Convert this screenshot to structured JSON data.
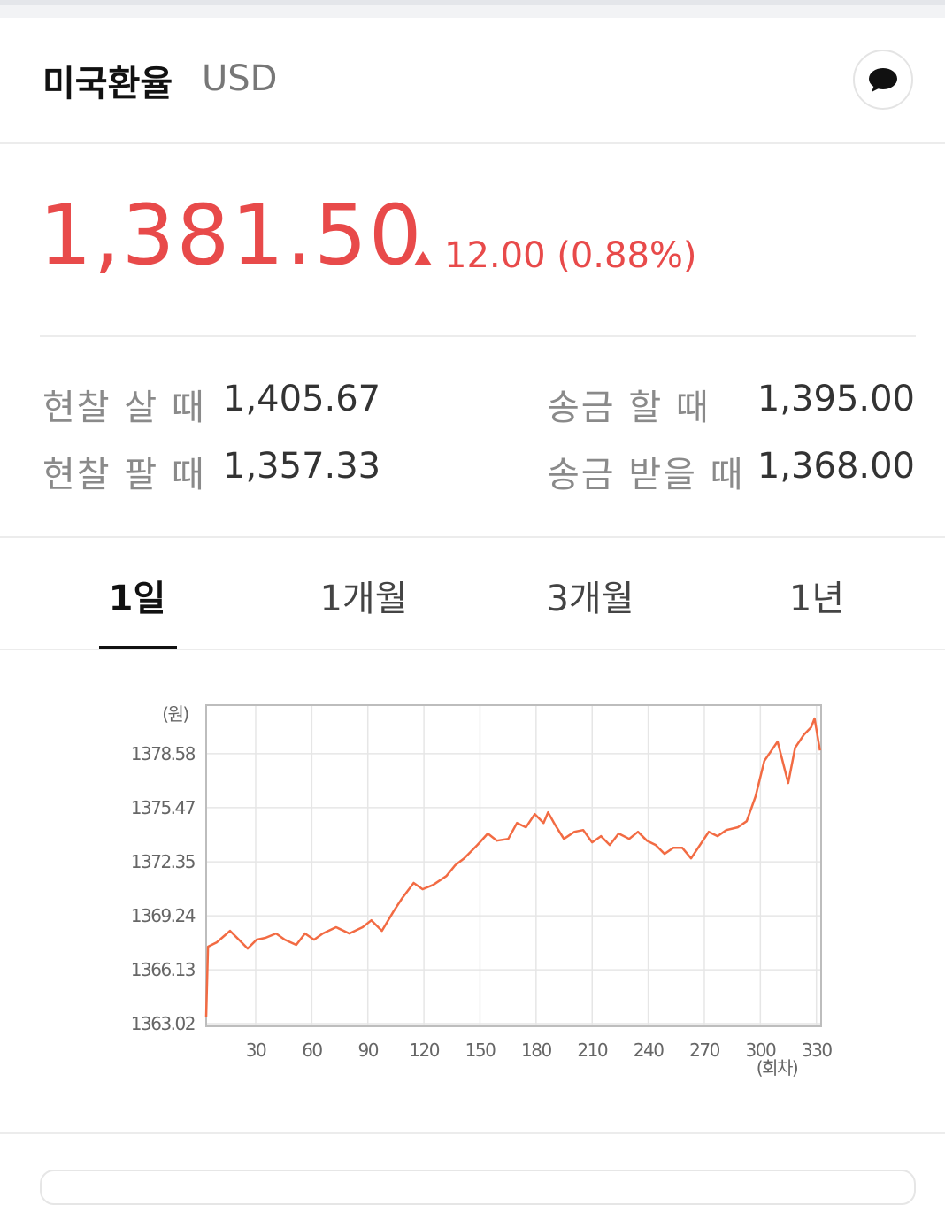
{
  "header": {
    "title": "미국환율",
    "code": "USD"
  },
  "quote": {
    "price": "1,381.50",
    "change": "12.00 (0.88%)"
  },
  "rates": [
    {
      "label": "현찰 살 때",
      "value": "1,405.67"
    },
    {
      "label": "송금 할 때",
      "value": "1,395.00"
    },
    {
      "label": "현찰 팔 때",
      "value": "1,357.33"
    },
    {
      "label": "송금 받을 때",
      "value": "1,368.00"
    }
  ],
  "tabs": [
    "1일",
    "1개월",
    "3개월",
    "1년"
  ],
  "chart_data": {
    "type": "line",
    "y_unit": "(원)",
    "x_unit": "(회차)",
    "x": [
      3.5,
      4.5,
      9.2,
      16.3,
      21.0,
      25.7,
      30.5,
      35.2,
      40.9,
      45.6,
      51.7,
      56.4,
      61.2,
      65.9,
      73.0,
      80.1,
      87.2,
      91.9,
      97.5,
      103.7,
      108.4,
      114.5,
      119.3,
      124.9,
      132.0,
      136.7,
      141.5,
      148.6,
      154.2,
      159.0,
      165.1,
      169.8,
      174.6,
      179.3,
      184.0,
      186.4,
      190.1,
      194.9,
      200.5,
      205.2,
      210.0,
      214.7,
      219.4,
      224.2,
      229.8,
      234.5,
      239.3,
      244.0,
      248.7,
      253.5,
      258.2,
      262.9,
      267.7,
      272.4,
      277.1,
      281.8,
      287.9,
      292.7,
      297.4,
      302.1,
      309.2,
      314.9,
      318.6,
      323.4,
      327.1,
      329.0,
      331.9
    ],
    "series": [
      {
        "color": "#f26b43",
        "values": [
          1363.38,
          1367.46,
          1367.71,
          1368.37,
          1367.86,
          1367.35,
          1367.86,
          1367.97,
          1368.22,
          1367.86,
          1367.56,
          1368.22,
          1367.86,
          1368.22,
          1368.58,
          1368.22,
          1368.58,
          1368.98,
          1368.37,
          1369.49,
          1370.26,
          1371.13,
          1370.77,
          1371.02,
          1371.53,
          1372.15,
          1372.55,
          1373.32,
          1373.98,
          1373.57,
          1373.67,
          1374.59,
          1374.34,
          1375.1,
          1374.59,
          1375.2,
          1374.49,
          1373.67,
          1374.08,
          1374.18,
          1373.47,
          1373.83,
          1373.32,
          1373.98,
          1373.67,
          1374.08,
          1373.57,
          1373.32,
          1372.81,
          1373.16,
          1373.16,
          1372.55,
          1373.32,
          1374.08,
          1373.83,
          1374.18,
          1374.34,
          1374.69,
          1376.12,
          1378.16,
          1379.28,
          1376.89,
          1378.92,
          1379.69,
          1380.1,
          1380.61,
          1378.77
        ]
      }
    ],
    "xlim": [
      3.5,
      332.5
    ],
    "ylim": [
      1362.87,
      1381.38
    ],
    "xticks": [
      30,
      60,
      90,
      120,
      150,
      180,
      210,
      240,
      270,
      300,
      330
    ],
    "yticks": [
      1363.02,
      1366.13,
      1369.24,
      1372.35,
      1375.47,
      1378.58
    ],
    "grid": true
  }
}
